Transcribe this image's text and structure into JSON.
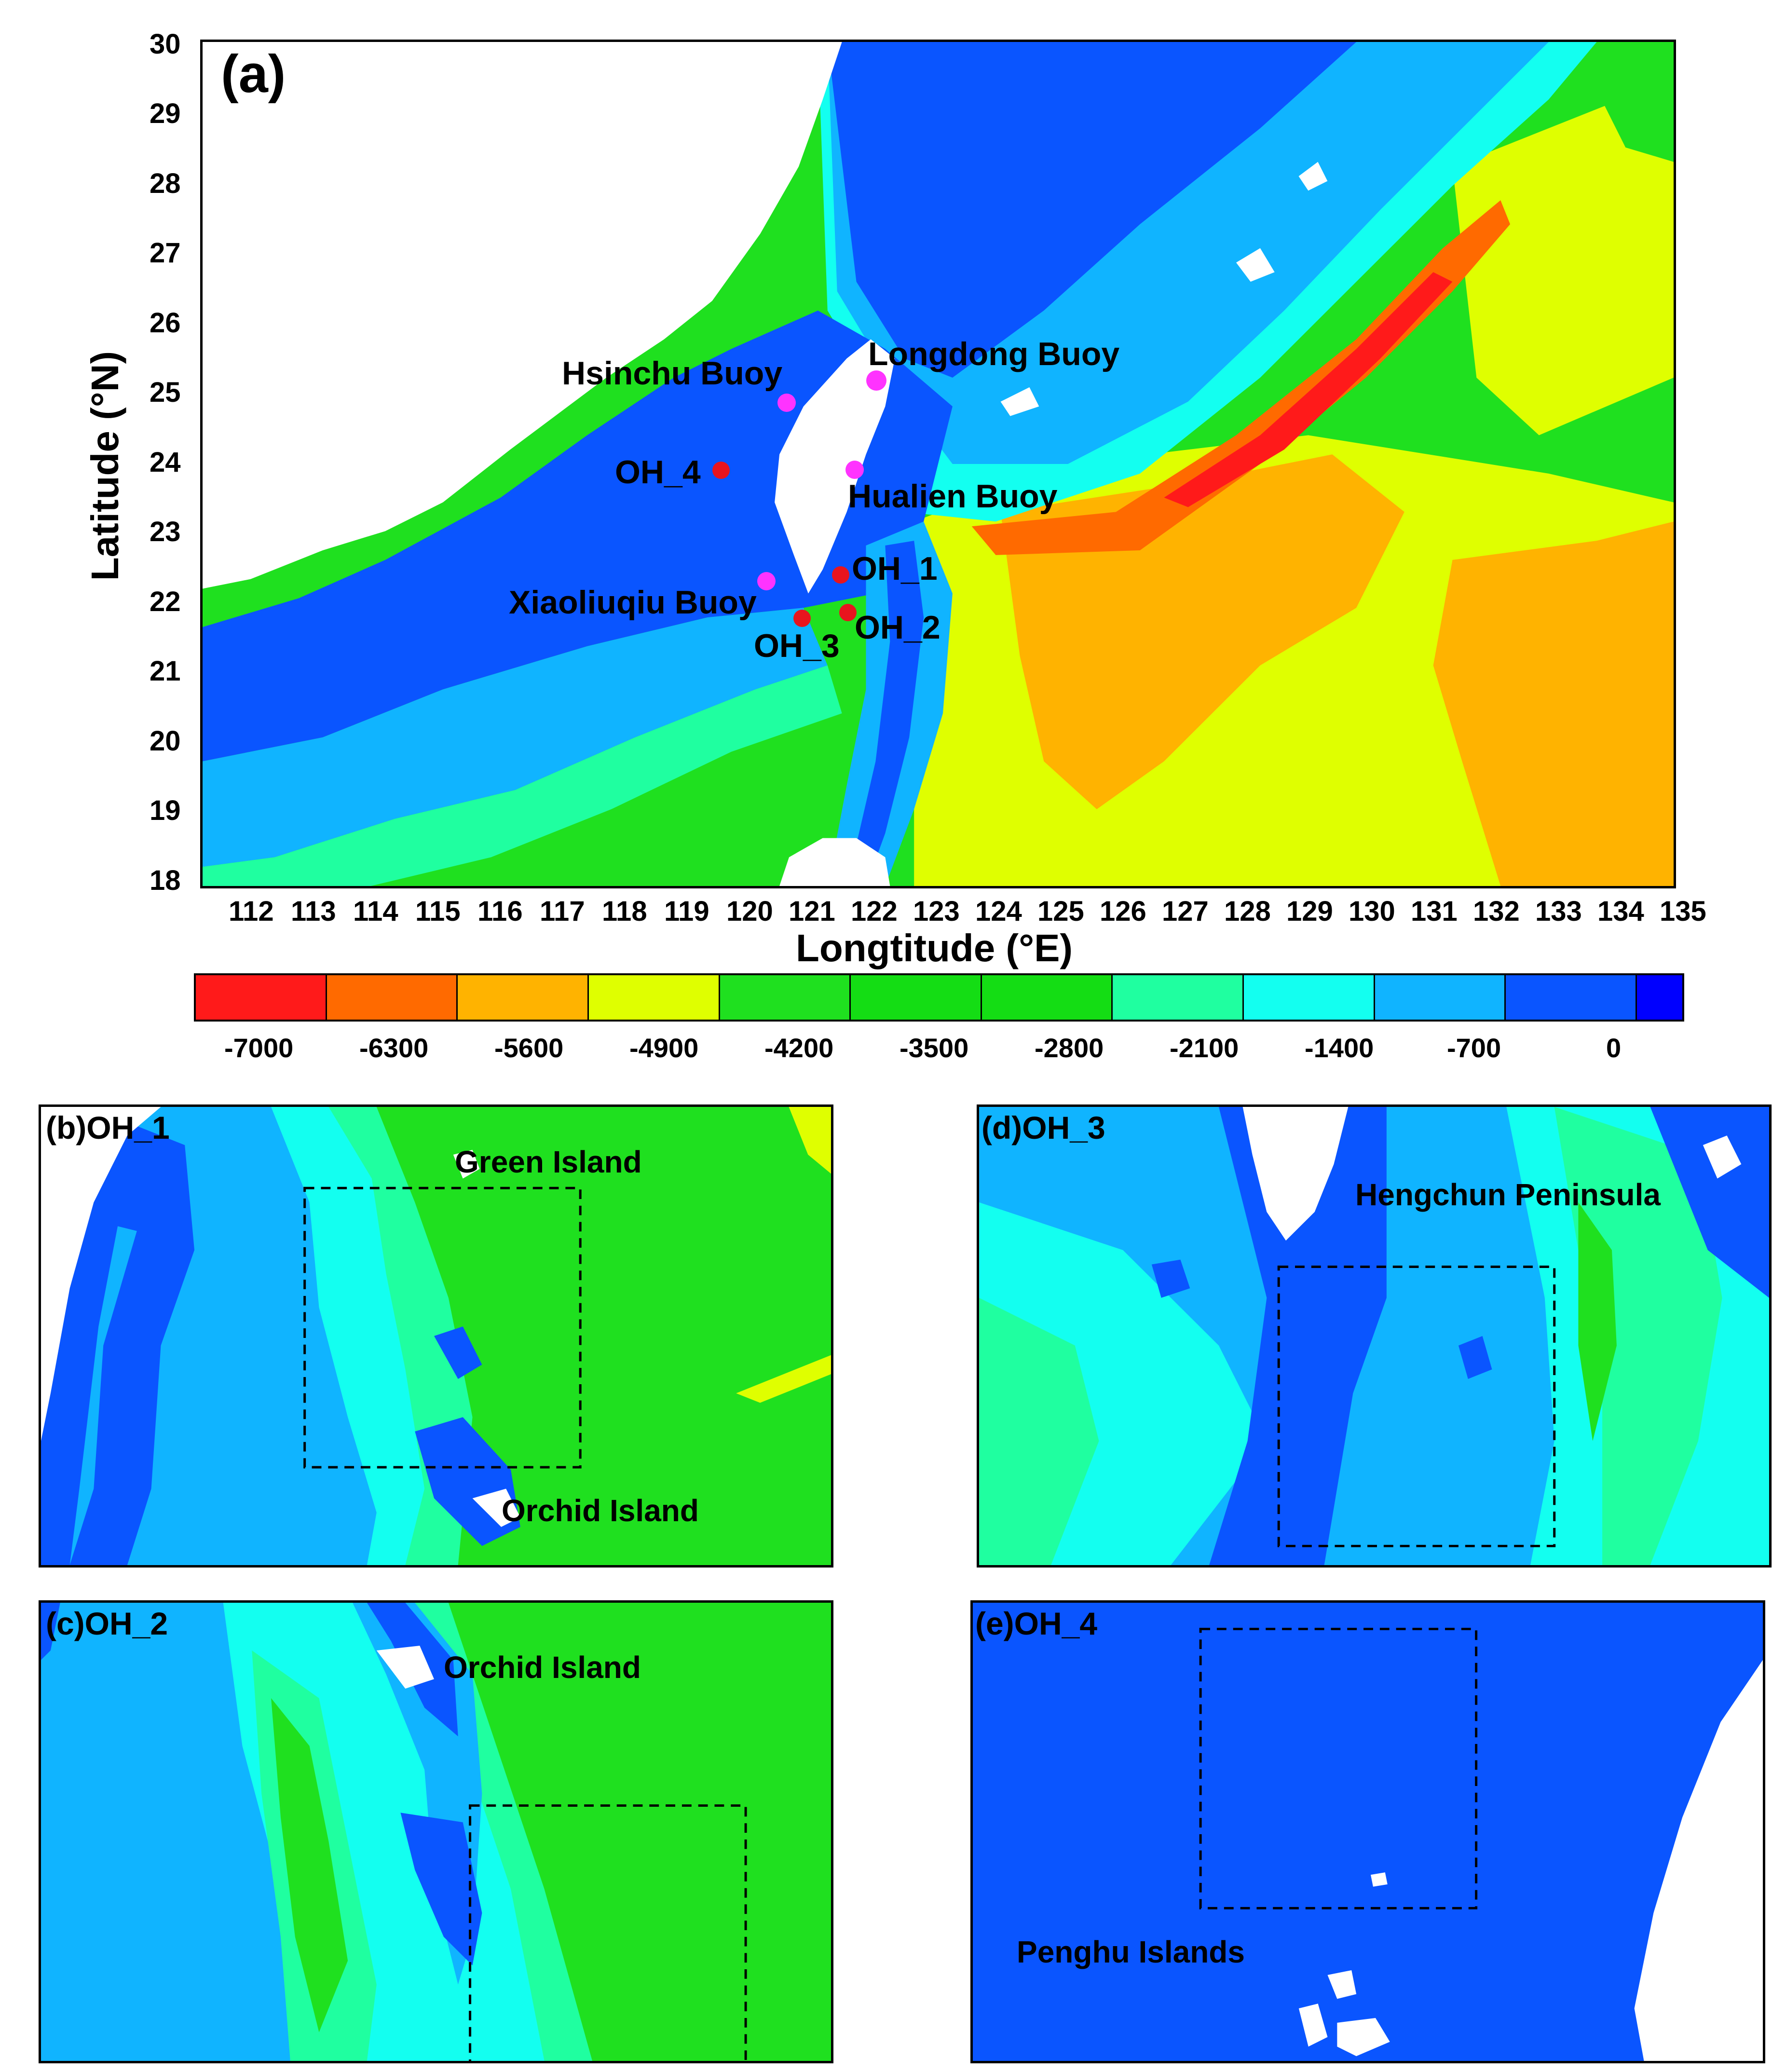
{
  "main_map": {
    "panel_label": "(a)",
    "x_axis_title": "Longtitude (°E)",
    "y_axis_title": "Latitude (°N)",
    "x_ticks": [
      "112",
      "113",
      "114",
      "115",
      "116",
      "117",
      "118",
      "119",
      "120",
      "121",
      "122",
      "123",
      "124",
      "125",
      "126",
      "127",
      "128",
      "129",
      "130",
      "131",
      "132",
      "133",
      "134",
      "135"
    ],
    "y_ticks": [
      "30",
      "29",
      "28",
      "27",
      "26",
      "25",
      "24",
      "23",
      "22",
      "21",
      "20",
      "19",
      "18"
    ],
    "buoys": [
      {
        "name": "Hsinchu Buoy",
        "color": "#ff33ff"
      },
      {
        "name": "Longdong Buoy",
        "color": "#ff33ff"
      },
      {
        "name": "Hualien Buoy",
        "color": "#ff33ff"
      },
      {
        "name": "Xiaoliuqiu Buoy",
        "color": "#ff33ff"
      }
    ],
    "stations": [
      {
        "name": "OH_1",
        "color": "#e8141e"
      },
      {
        "name": "OH_2",
        "color": "#e8141e"
      },
      {
        "name": "OH_3",
        "color": "#e8141e"
      },
      {
        "name": "OH_4",
        "color": "#e8141e"
      }
    ]
  },
  "colorbar": {
    "labels": [
      "-7000",
      "-6300",
      "-5600",
      "-4900",
      "-4200",
      "-3500",
      "-2800",
      "-2100",
      "-1400",
      "-700",
      "0"
    ],
    "colors": [
      "#ff1a1a",
      "#ff6a00",
      "#ffb300",
      "#dfff00",
      "#1fe01f",
      "#14dd14",
      "#14dd14",
      "#1fffa0",
      "#13fff0",
      "#10b4ff",
      "#0a55ff",
      "#0000ff"
    ]
  },
  "subpanels": {
    "b": {
      "title": "(b)OH_1",
      "labels": [
        "Green Island",
        "Orchid Island"
      ]
    },
    "c": {
      "title": "(c)OH_2",
      "labels": [
        "Orchid Island"
      ]
    },
    "d": {
      "title": "(d)OH_3",
      "labels": [
        "Hengchun Peninsula"
      ]
    },
    "e": {
      "title": "(e)OH_4",
      "labels": [
        "Penghu Islands"
      ]
    }
  },
  "palette": {
    "deep_blue": "#0a55ff",
    "light_blue": "#10b4ff",
    "cyan": "#13fff0",
    "aqua": "#1fffa0",
    "green": "#1fe01f",
    "yellow": "#dfff00",
    "orange": "#ffb300",
    "red_orange": "#ff6a00",
    "red": "#ff1a1a",
    "land": "#ffffff"
  }
}
